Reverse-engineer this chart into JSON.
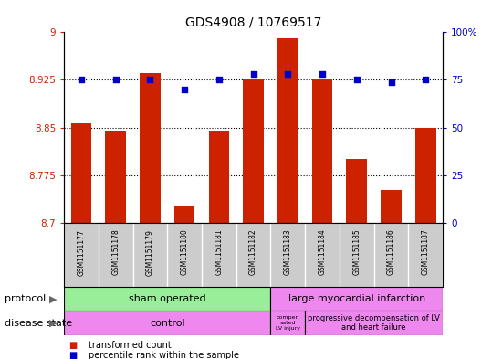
{
  "title": "GDS4908 / 10769517",
  "samples": [
    "GSM1151177",
    "GSM1151178",
    "GSM1151179",
    "GSM1151180",
    "GSM1151181",
    "GSM1151182",
    "GSM1151183",
    "GSM1151184",
    "GSM1151185",
    "GSM1151186",
    "GSM1151187"
  ],
  "transformed_counts": [
    8.857,
    8.845,
    8.935,
    8.725,
    8.845,
    8.925,
    8.99,
    8.925,
    8.8,
    8.752,
    8.85
  ],
  "percentile_ranks": [
    75,
    75,
    75,
    70,
    75,
    78,
    78,
    78,
    75,
    74,
    75
  ],
  "ylim_left": [
    8.7,
    9.0
  ],
  "ylim_right": [
    0,
    100
  ],
  "yticks_left": [
    8.7,
    8.775,
    8.85,
    8.925,
    9.0
  ],
  "yticks_right": [
    0,
    25,
    50,
    75,
    100
  ],
  "ytick_labels_left": [
    "8.7",
    "8.775",
    "8.85",
    "8.925",
    "9"
  ],
  "ytick_labels_right": [
    "0",
    "25",
    "50",
    "75",
    "100%"
  ],
  "bar_color": "#cc2200",
  "dot_color": "#0000cc",
  "grid_vals": [
    8.775,
    8.85,
    8.925
  ],
  "protocol_sham": "sham operated",
  "protocol_large": "large myocardial infarction",
  "disease_control": "control",
  "disease_comp": "compen\nsated\nLV injury",
  "disease_prog": "progressive decompensation of LV\nand heart failure",
  "sham_color": "#99ee99",
  "large_color": "#ee88ee",
  "control_color": "#ee88ee",
  "xtick_bg": "#cccccc",
  "protocol_label": "protocol",
  "disease_label": "disease state",
  "legend_bar": "transformed count",
  "legend_dot": "percentile rank within the sample",
  "n_sham": 6,
  "n_large": 5,
  "n_comp": 1
}
